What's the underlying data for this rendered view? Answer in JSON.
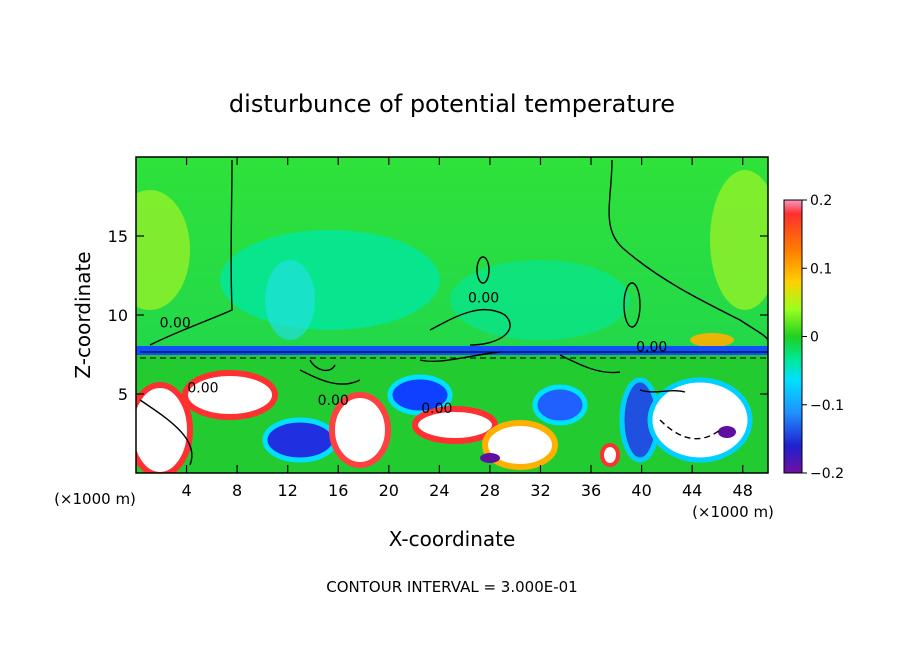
{
  "chart_data": {
    "type": "heatmap",
    "title": "disturbunce of potential temperature",
    "xlabel": "X-coordinate",
    "ylabel": "Z-coordinate",
    "x_unit": "(×1000 m)",
    "x_unit_right": "(×1000 m)",
    "footer": "CONTOUR INTERVAL = 3.000E-01",
    "xlim": [
      0,
      50
    ],
    "ylim": [
      0,
      20
    ],
    "x_ticks": [
      4,
      8,
      12,
      16,
      20,
      24,
      28,
      32,
      36,
      40,
      44,
      48
    ],
    "y_ticks": [
      5,
      10,
      15
    ],
    "colorbar": {
      "range": [
        -0.2,
        0.2
      ],
      "tick_values": [
        0.2,
        0.1,
        0,
        -0.1,
        -0.2
      ],
      "tick_labels": [
        "0.2",
        "0.1",
        "0",
        "−0.1",
        "−0.2"
      ]
    },
    "contour_labels": [
      {
        "text": "0.00",
        "x": 3.1,
        "z": 9.2
      },
      {
        "text": "0.00",
        "x": 27.5,
        "z": 10.8
      },
      {
        "text": "0.00",
        "x": 40.8,
        "z": 7.7
      },
      {
        "text": "0.00",
        "x": 5.3,
        "z": 5.1
      },
      {
        "text": "0.00",
        "x": 15.6,
        "z": 4.3
      },
      {
        "text": "0.00",
        "x": 23.8,
        "z": 3.8
      }
    ]
  }
}
